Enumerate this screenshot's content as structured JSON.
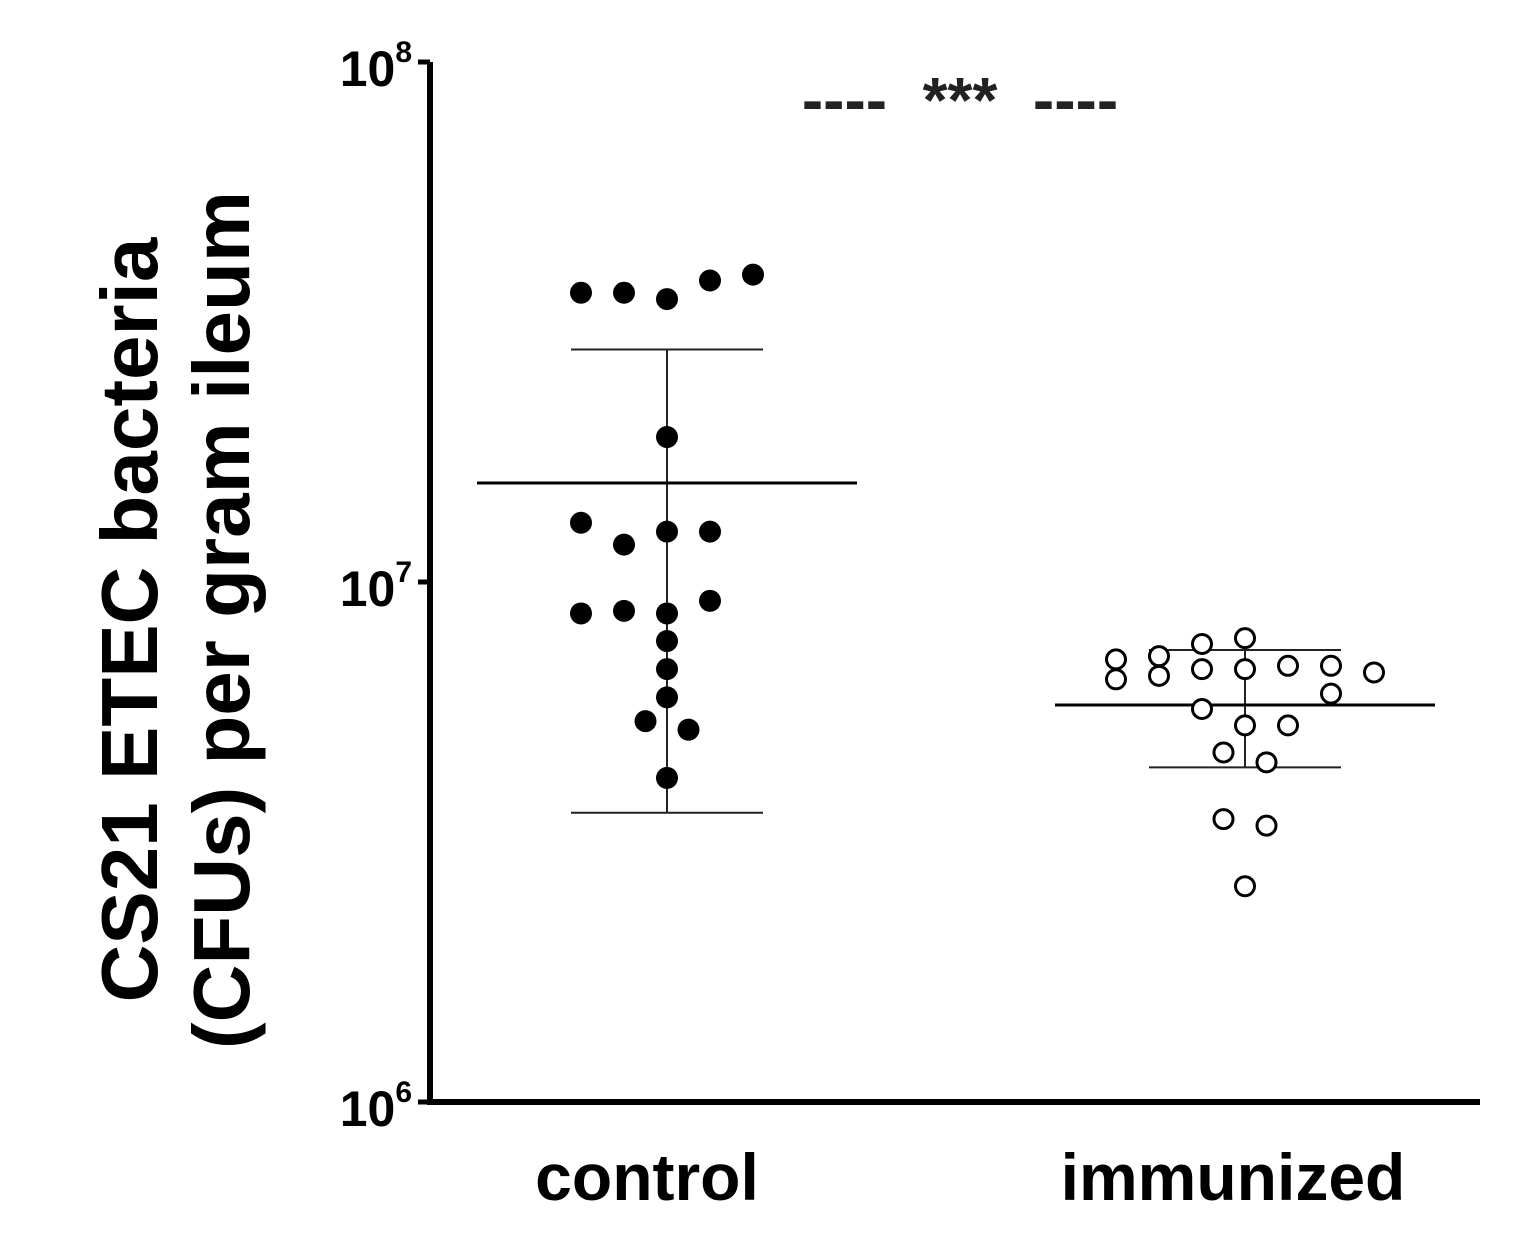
{
  "chart_data": {
    "type": "scatter",
    "yscale": "log",
    "ylim": [
      1000000,
      100000000
    ],
    "yticks": [
      {
        "value": 1000000,
        "base": "10",
        "exp": "6"
      },
      {
        "value": 10000000,
        "base": "10",
        "exp": "7"
      },
      {
        "value": 100000000,
        "base": "10",
        "exp": "8"
      }
    ],
    "ylabel_lines": [
      "CS21 ETEC bacteria",
      "(CFUs) per gram ileum"
    ],
    "categories": [
      "control",
      "immunized"
    ],
    "annotation": "----  ***  ----",
    "groups": [
      {
        "name": "control",
        "marker": "filled",
        "mean": 15500000,
        "error_upper": 28000000,
        "error_lower": 3600000,
        "points": [
          {
            "cx": -2,
            "y": 36000000
          },
          {
            "cx": -1,
            "y": 36000000
          },
          {
            "cx": 0,
            "y": 35000000
          },
          {
            "cx": 1,
            "y": 38000000
          },
          {
            "cx": 2,
            "y": 39000000
          },
          {
            "cx": 0,
            "y": 19000000
          },
          {
            "cx": -2,
            "y": 13000000
          },
          {
            "cx": -1,
            "y": 11800000
          },
          {
            "cx": 0,
            "y": 12500000
          },
          {
            "cx": 1,
            "y": 12500000
          },
          {
            "cx": -2,
            "y": 8700000
          },
          {
            "cx": -1,
            "y": 8800000
          },
          {
            "cx": 0,
            "y": 8700000
          },
          {
            "cx": 1,
            "y": 9200000
          },
          {
            "cx": 0,
            "y": 7700000
          },
          {
            "cx": 0,
            "y": 6800000
          },
          {
            "cx": 0,
            "y": 6000000
          },
          {
            "cx": -0.5,
            "y": 5400000
          },
          {
            "cx": 0.5,
            "y": 5200000
          },
          {
            "cx": 0,
            "y": 4200000
          }
        ]
      },
      {
        "name": "immunized",
        "marker": "open",
        "mean": 5800000,
        "error_upper": 7400000,
        "error_lower": 4400000,
        "points": [
          {
            "cx": -3,
            "y": 7100000
          },
          {
            "cx": -3,
            "y": 6500000
          },
          {
            "cx": -2,
            "y": 7200000
          },
          {
            "cx": -2,
            "y": 6600000
          },
          {
            "cx": -1,
            "y": 7600000
          },
          {
            "cx": -1,
            "y": 6800000
          },
          {
            "cx": 0,
            "y": 7800000
          },
          {
            "cx": 0,
            "y": 6800000
          },
          {
            "cx": 1,
            "y": 6900000
          },
          {
            "cx": 2,
            "y": 6900000
          },
          {
            "cx": 3,
            "y": 6700000
          },
          {
            "cx": 2,
            "y": 6100000
          },
          {
            "cx": -1,
            "y": 5700000
          },
          {
            "cx": 0,
            "y": 5300000
          },
          {
            "cx": 1,
            "y": 5300000
          },
          {
            "cx": -0.5,
            "y": 4700000
          },
          {
            "cx": 0.5,
            "y": 4500000
          },
          {
            "cx": -0.5,
            "y": 3500000
          },
          {
            "cx": 0.5,
            "y": 3400000
          },
          {
            "cx": 0,
            "y": 2600000
          }
        ]
      }
    ]
  }
}
